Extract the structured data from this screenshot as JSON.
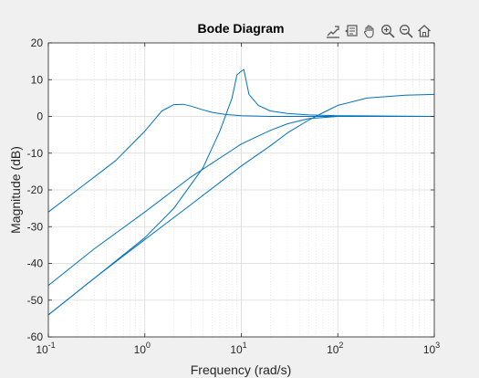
{
  "chart_data": {
    "type": "line",
    "title": "Bode Diagram",
    "xlabel": "Frequency  (rad/s)",
    "ylabel": "Magnitude (dB)",
    "x_scale": "log",
    "xlim": [
      0.1,
      1000
    ],
    "ylim": [
      -60,
      20
    ],
    "x_ticks": [
      {
        "value": 0.1,
        "base": "10",
        "exp": "-1"
      },
      {
        "value": 1,
        "base": "10",
        "exp": "0"
      },
      {
        "value": 10,
        "base": "10",
        "exp": "1"
      },
      {
        "value": 100,
        "base": "10",
        "exp": "2"
      },
      {
        "value": 1000,
        "base": "10",
        "exp": "3"
      }
    ],
    "y_ticks": [
      "-60",
      "-50",
      "-40",
      "-30",
      "-20",
      "-10",
      "0",
      "10",
      "20"
    ],
    "grid": true,
    "line_color": "#0072bd",
    "series": [
      {
        "x": [
          0.1,
          0.2,
          0.5,
          1,
          1.5,
          2,
          2.5,
          3,
          4,
          5,
          7,
          10,
          20,
          50,
          100,
          1000
        ],
        "y": [
          -26,
          -20,
          -12,
          -4,
          1.5,
          3.2,
          3.3,
          2.8,
          1.8,
          1.1,
          0.5,
          0.2,
          0,
          0,
          0,
          0
        ]
      },
      {
        "x": [
          0.1,
          0.3,
          1,
          2,
          4,
          6,
          8,
          9,
          10,
          10.6,
          12,
          15,
          20,
          30,
          50,
          100,
          1000
        ],
        "y": [
          -54,
          -44,
          -33,
          -25,
          -14,
          -4,
          5,
          11.3,
          12.3,
          12.8,
          6,
          3,
          1.5,
          0.8,
          0.4,
          0.2,
          0
        ]
      },
      {
        "x": [
          0.1,
          0.3,
          1,
          3,
          10,
          20,
          30,
          50,
          100,
          200,
          500,
          1000
        ],
        "y": [
          -46,
          -36,
          -26,
          -16.5,
          -7.5,
          -3.8,
          -2,
          -0.6,
          0,
          0,
          0,
          0
        ]
      },
      {
        "x": [
          0.1,
          0.3,
          1,
          3,
          10,
          20,
          30,
          50,
          70,
          100,
          200,
          500,
          1000
        ],
        "y": [
          -54,
          -44,
          -33.5,
          -24,
          -13.5,
          -8,
          -4.5,
          -1,
          1,
          3,
          5,
          5.8,
          6
        ]
      }
    ]
  },
  "toolbar": {
    "icons": [
      "export-icon",
      "data-tip-icon",
      "pan-icon",
      "zoom-in-icon",
      "zoom-out-icon",
      "home-icon"
    ]
  }
}
